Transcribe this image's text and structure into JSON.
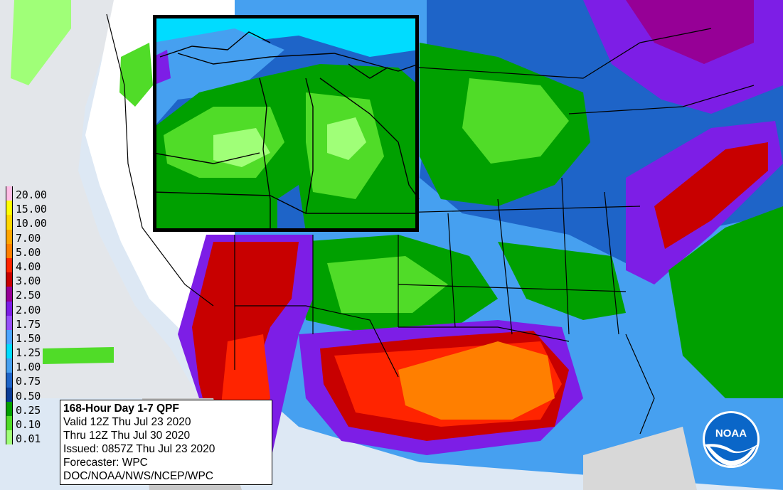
{
  "legend": {
    "labels": [
      "20.00",
      "15.00",
      "10.00",
      "7.00",
      "5.00",
      "4.00",
      "3.00",
      "2.50",
      "2.00",
      "1.75",
      "1.50",
      "1.25",
      "1.00",
      "0.75",
      "0.50",
      "0.25",
      "0.10",
      "0.01"
    ],
    "colors": [
      "#ffbee6",
      "#ffff00",
      "#ffd700",
      "#ffa500",
      "#ff7f00",
      "#ff2400",
      "#c80000",
      "#960096",
      "#7d1ee6",
      "#9650fa",
      "#4ba5ff",
      "#00dcff",
      "#46a0f0",
      "#1e64c8",
      "#0a3c96",
      "#00a000",
      "#50dc28",
      "#a0ff78"
    ]
  },
  "info": {
    "title": "168-Hour Day 1-7 QPF",
    "valid": "Valid 12Z Thu Jul 23 2020",
    "thru": "Thru 12Z Thu Jul 30 2020",
    "issued": "Issued: 0857Z Thu Jul 23 2020",
    "forecaster": "Forecaster: WPC",
    "org": "DOC/NOAA/NWS/NCEP/WPC"
  },
  "logo": {
    "text": "NOAA"
  },
  "colors": {
    "ocean": "#dde8f4",
    "dry": "#ffffff",
    "light_green": "#a0ff78",
    "green": "#50dc28",
    "dark_green": "#00a000",
    "blue_dark": "#0a3c96",
    "blue_mid": "#1e64c8",
    "blue_light": "#46a0f0",
    "cyan": "#00dcff",
    "purple": "#7d1ee6",
    "magenta": "#960096",
    "red_dark": "#c80000",
    "red": "#ff2400",
    "orange": "#ff7f00",
    "orange_light": "#ffa500"
  }
}
